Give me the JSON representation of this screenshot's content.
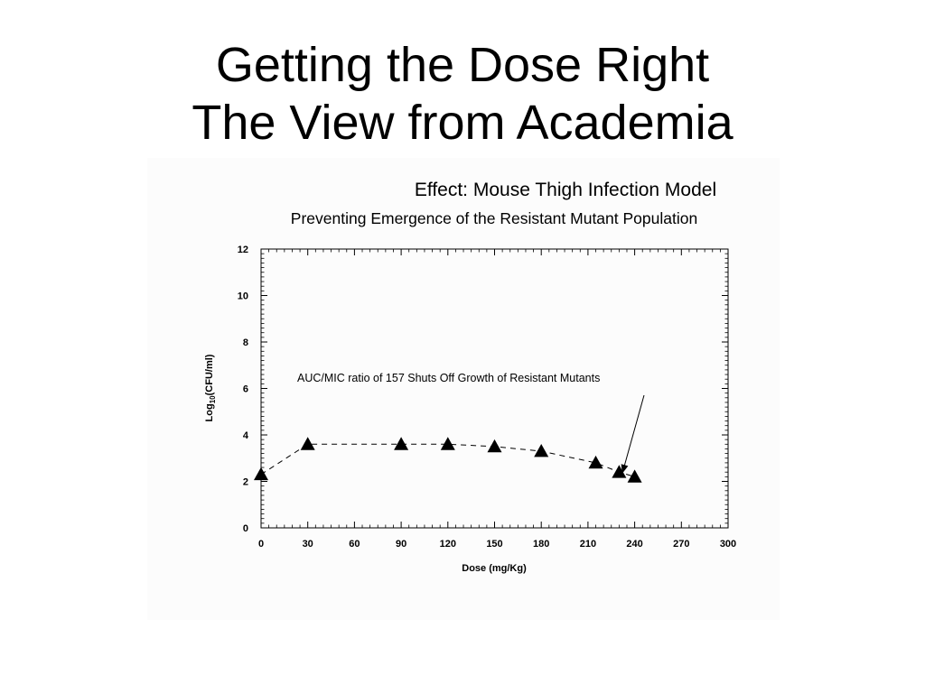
{
  "slide": {
    "title_line1": "Getting the Dose Right",
    "title_line2": "The View from Academia"
  },
  "chart_data": {
    "type": "scatter",
    "title": "Effect: Mouse Thigh Infection Model",
    "subtitle": "Preventing Emergence of the Resistant Mutant Population",
    "xlabel": "Dose (mg/Kg)",
    "ylabel_main": "Log",
    "ylabel_sub": "10",
    "ylabel_rest": "(CFU/ml)",
    "xlim": [
      0,
      300
    ],
    "ylim": [
      0,
      12
    ],
    "x_ticks": [
      0,
      30,
      60,
      90,
      120,
      150,
      180,
      210,
      240,
      270,
      300
    ],
    "y_ticks": [
      0,
      2,
      4,
      6,
      8,
      10,
      12
    ],
    "marker": "triangle",
    "line_style": "dashed",
    "grid": false,
    "points": [
      {
        "x": 0,
        "y": 2.3
      },
      {
        "x": 30,
        "y": 3.6
      },
      {
        "x": 90,
        "y": 3.6
      },
      {
        "x": 120,
        "y": 3.6
      },
      {
        "x": 150,
        "y": 3.5
      },
      {
        "x": 180,
        "y": 3.3
      },
      {
        "x": 215,
        "y": 2.8
      },
      {
        "x": 230,
        "y": 2.4
      },
      {
        "x": 240,
        "y": 2.2
      }
    ],
    "annotation": {
      "text": "AUC/MIC ratio of 157 Shuts Off Growth of Resistant Mutants",
      "target_x": 232,
      "target_y": 2.8
    }
  }
}
